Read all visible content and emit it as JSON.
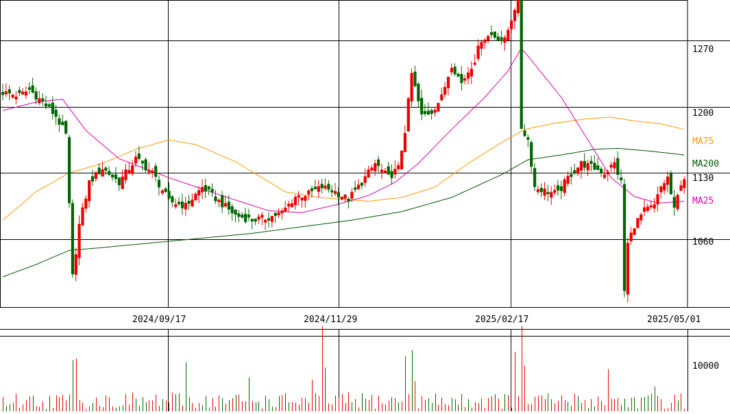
{
  "chart_data": [
    {
      "type": "candlestick",
      "title": "",
      "y_ticks": [
        "1270",
        "1200",
        "1130",
        "1060"
      ],
      "ylim": [
        988,
        1313
      ],
      "x_ticks": [
        "2024/09/17",
        "2024/11/29",
        "2025/02/17",
        "2025/05/01"
      ],
      "grid": true,
      "colors": {
        "up": "#ee0000",
        "down": "#006600",
        "ma25": "#dd00aa",
        "ma75": "#ff9900",
        "ma200": "#005500"
      },
      "ma_labels": {
        "ma75": "MA75",
        "ma200": "MA200",
        "ma25": "MA25"
      },
      "anchors": [
        {
          "day": 0,
          "close": 1215
        },
        {
          "day": 5,
          "close": 1212
        },
        {
          "day": 8,
          "close": 1218
        },
        {
          "day": 12,
          "close": 1205
        },
        {
          "day": 16,
          "close": 1190
        },
        {
          "day": 19,
          "close": 1170
        },
        {
          "day": 21,
          "close": 1020
        },
        {
          "day": 23,
          "close": 1075
        },
        {
          "day": 26,
          "close": 1120
        },
        {
          "day": 30,
          "close": 1135
        },
        {
          "day": 35,
          "close": 1120
        },
        {
          "day": 40,
          "close": 1145
        },
        {
          "day": 45,
          "close": 1130
        },
        {
          "day": 50,
          "close": 1100
        },
        {
          "day": 55,
          "close": 1095
        },
        {
          "day": 60,
          "close": 1115
        },
        {
          "day": 65,
          "close": 1100
        },
        {
          "day": 70,
          "close": 1085
        },
        {
          "day": 75,
          "close": 1080
        },
        {
          "day": 80,
          "close": 1083
        },
        {
          "day": 84,
          "close": 1088
        },
        {
          "day": 88,
          "close": 1105
        },
        {
          "day": 92,
          "close": 1108
        },
        {
          "day": 96,
          "close": 1115
        },
        {
          "day": 100,
          "close": 1110
        },
        {
          "day": 104,
          "close": 1102
        },
        {
          "day": 108,
          "close": 1120
        },
        {
          "day": 112,
          "close": 1140
        },
        {
          "day": 116,
          "close": 1125
        },
        {
          "day": 119,
          "close": 1135
        },
        {
          "day": 121,
          "close": 1175
        },
        {
          "day": 123,
          "close": 1235
        },
        {
          "day": 126,
          "close": 1190
        },
        {
          "day": 129,
          "close": 1195
        },
        {
          "day": 132,
          "close": 1210
        },
        {
          "day": 135,
          "close": 1245
        },
        {
          "day": 138,
          "close": 1225
        },
        {
          "day": 142,
          "close": 1250
        },
        {
          "day": 144,
          "close": 1272
        },
        {
          "day": 147,
          "close": 1276
        },
        {
          "day": 151,
          "close": 1270
        },
        {
          "day": 154,
          "close": 1305
        },
        {
          "day": 155,
          "close": 1310
        },
        {
          "day": 156,
          "close": 1178
        },
        {
          "day": 158,
          "close": 1165
        },
        {
          "day": 160,
          "close": 1115
        },
        {
          "day": 164,
          "close": 1110
        },
        {
          "day": 167,
          "close": 1108
        },
        {
          "day": 170,
          "close": 1125
        },
        {
          "day": 174,
          "close": 1140
        },
        {
          "day": 178,
          "close": 1135
        },
        {
          "day": 181,
          "close": 1130
        },
        {
          "day": 184,
          "close": 1140
        },
        {
          "day": 186,
          "close": 1120
        },
        {
          "day": 187,
          "close": 1005
        },
        {
          "day": 188,
          "close": 1055
        },
        {
          "day": 190,
          "close": 1075
        },
        {
          "day": 193,
          "close": 1090
        },
        {
          "day": 196,
          "close": 1095
        },
        {
          "day": 198,
          "close": 1115
        },
        {
          "day": 200,
          "close": 1125
        },
        {
          "day": 202,
          "close": 1090
        },
        {
          "day": 204,
          "close": 1120
        },
        {
          "day": 205,
          "close": 1125
        }
      ],
      "ma25": [
        {
          "day": 0,
          "value": 1196
        },
        {
          "day": 10,
          "value": 1205
        },
        {
          "day": 18,
          "value": 1208
        },
        {
          "day": 25,
          "value": 1175
        },
        {
          "day": 35,
          "value": 1145
        },
        {
          "day": 50,
          "value": 1125
        },
        {
          "day": 65,
          "value": 1107
        },
        {
          "day": 80,
          "value": 1090
        },
        {
          "day": 90,
          "value": 1088
        },
        {
          "day": 100,
          "value": 1096
        },
        {
          "day": 110,
          "value": 1106
        },
        {
          "day": 118,
          "value": 1120
        },
        {
          "day": 125,
          "value": 1140
        },
        {
          "day": 135,
          "value": 1176
        },
        {
          "day": 145,
          "value": 1210
        },
        {
          "day": 152,
          "value": 1238
        },
        {
          "day": 156,
          "value": 1262
        },
        {
          "day": 160,
          "value": 1245
        },
        {
          "day": 168,
          "value": 1210
        },
        {
          "day": 176,
          "value": 1165
        },
        {
          "day": 183,
          "value": 1125
        },
        {
          "day": 190,
          "value": 1105
        },
        {
          "day": 197,
          "value": 1098
        },
        {
          "day": 205,
          "value": 1100
        }
      ],
      "ma75": [
        {
          "day": 0,
          "value": 1080
        },
        {
          "day": 10,
          "value": 1110
        },
        {
          "day": 20,
          "value": 1130
        },
        {
          "day": 30,
          "value": 1140
        },
        {
          "day": 40,
          "value": 1155
        },
        {
          "day": 50,
          "value": 1165
        },
        {
          "day": 58,
          "value": 1160
        },
        {
          "day": 70,
          "value": 1142
        },
        {
          "day": 85,
          "value": 1110
        },
        {
          "day": 95,
          "value": 1104
        },
        {
          "day": 110,
          "value": 1100
        },
        {
          "day": 120,
          "value": 1104
        },
        {
          "day": 130,
          "value": 1115
        },
        {
          "day": 140,
          "value": 1140
        },
        {
          "day": 150,
          "value": 1162
        },
        {
          "day": 157,
          "value": 1176
        },
        {
          "day": 165,
          "value": 1182
        },
        {
          "day": 175,
          "value": 1187
        },
        {
          "day": 183,
          "value": 1189
        },
        {
          "day": 190,
          "value": 1185
        },
        {
          "day": 198,
          "value": 1182
        },
        {
          "day": 205,
          "value": 1176
        }
      ],
      "ma200": [
        {
          "day": 0,
          "value": 1020
        },
        {
          "day": 10,
          "value": 1033
        },
        {
          "day": 20,
          "value": 1048
        },
        {
          "day": 30,
          "value": 1051
        },
        {
          "day": 45,
          "value": 1056
        },
        {
          "day": 60,
          "value": 1061
        },
        {
          "day": 75,
          "value": 1066
        },
        {
          "day": 90,
          "value": 1073
        },
        {
          "day": 105,
          "value": 1080
        },
        {
          "day": 120,
          "value": 1089
        },
        {
          "day": 135,
          "value": 1104
        },
        {
          "day": 150,
          "value": 1128
        },
        {
          "day": 158,
          "value": 1144
        },
        {
          "day": 168,
          "value": 1149
        },
        {
          "day": 178,
          "value": 1155
        },
        {
          "day": 185,
          "value": 1156
        },
        {
          "day": 195,
          "value": 1153
        },
        {
          "day": 205,
          "value": 1149
        }
      ],
      "days": 206
    },
    {
      "type": "bar",
      "title": "",
      "y_ticks": [
        "10000"
      ],
      "ylim": [
        0,
        12000
      ],
      "spikes": [
        {
          "day": 21,
          "value": 6800
        },
        {
          "day": 22,
          "value": 7000
        },
        {
          "day": 55,
          "value": 6500
        },
        {
          "day": 74,
          "value": 4500
        },
        {
          "day": 93,
          "value": 4200
        },
        {
          "day": 96,
          "value": 11300
        },
        {
          "day": 97,
          "value": 5800
        },
        {
          "day": 121,
          "value": 7300
        },
        {
          "day": 123,
          "value": 8100
        },
        {
          "day": 124,
          "value": 4000
        },
        {
          "day": 154,
          "value": 7900
        },
        {
          "day": 156,
          "value": 11300
        },
        {
          "day": 157,
          "value": 6000
        },
        {
          "day": 182,
          "value": 5600
        },
        {
          "day": 196,
          "value": 3300
        }
      ]
    }
  ]
}
